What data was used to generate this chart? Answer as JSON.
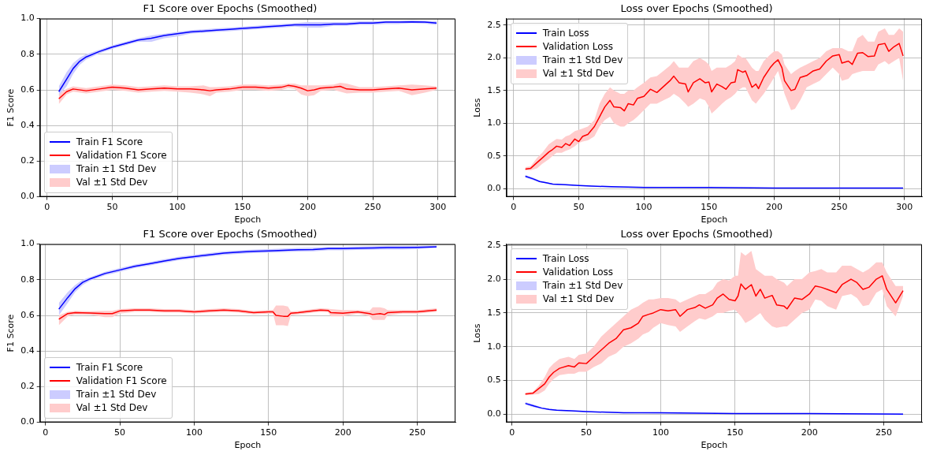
{
  "chart_data": [
    {
      "type": "line",
      "title": "F1 Score over Epochs (Smoothed)",
      "xlabel": "Epoch",
      "ylabel": "F1 Score",
      "xlim": [
        -5.5,
        313.5
      ],
      "ylim": [
        0,
        1
      ],
      "xticks": [
        0,
        50,
        100,
        150,
        200,
        250,
        300
      ],
      "yticks": [
        {
          "value": 0,
          "label": "0.0"
        },
        {
          "value": 0.2,
          "label": "0.2"
        },
        {
          "value": 0.4,
          "label": "0.4"
        },
        {
          "value": 0.6,
          "label": "0.6"
        },
        {
          "value": 0.8,
          "label": "0.8"
        },
        {
          "value": 1,
          "label": "1.0"
        }
      ],
      "grid": true,
      "legend": "bottom left",
      "marker": "none",
      "annotations": [
        "Train ±1 Std Dev",
        "Val ±1 Std Dev"
      ],
      "series": [
        {
          "name": "Train F1 Score",
          "color": "#0000ff",
          "x": [
            9,
            15,
            20,
            25,
            30,
            40,
            50,
            60,
            70,
            80,
            90,
            100,
            110,
            120,
            130,
            140,
            150,
            160,
            170,
            180,
            190,
            200,
            210,
            220,
            230,
            240,
            250,
            260,
            270,
            280,
            290,
            299
          ],
          "values": [
            0.59,
            0.66,
            0.72,
            0.76,
            0.785,
            0.815,
            0.84,
            0.86,
            0.88,
            0.89,
            0.905,
            0.915,
            0.925,
            0.93,
            0.935,
            0.94,
            0.945,
            0.95,
            0.955,
            0.96,
            0.965,
            0.965,
            0.965,
            0.97,
            0.97,
            0.975,
            0.975,
            0.98,
            0.98,
            0.982,
            0.98,
            0.975
          ],
          "lower": [
            0.57,
            0.62,
            0.69,
            0.74,
            0.77,
            0.805,
            0.83,
            0.85,
            0.87,
            0.87,
            0.89,
            0.9,
            0.915,
            0.92,
            0.925,
            0.93,
            0.935,
            0.94,
            0.945,
            0.95,
            0.955,
            0.95,
            0.95,
            0.96,
            0.96,
            0.965,
            0.965,
            0.97,
            0.97,
            0.975,
            0.972,
            0.965
          ],
          "upper": [
            0.62,
            0.7,
            0.75,
            0.78,
            0.8,
            0.825,
            0.85,
            0.87,
            0.89,
            0.905,
            0.915,
            0.925,
            0.935,
            0.94,
            0.945,
            0.95,
            0.955,
            0.96,
            0.965,
            0.97,
            0.975,
            0.98,
            0.98,
            0.98,
            0.98,
            0.985,
            0.985,
            0.988,
            0.988,
            0.99,
            0.988,
            0.985
          ]
        },
        {
          "name": "Validation F1 Score",
          "color": "#ff0000",
          "x": [
            9,
            15,
            20,
            30,
            40,
            50,
            60,
            70,
            80,
            90,
            100,
            110,
            120,
            125,
            130,
            140,
            150,
            160,
            170,
            180,
            185,
            190,
            195,
            200,
            205,
            210,
            220,
            225,
            230,
            240,
            250,
            260,
            270,
            280,
            290,
            299
          ],
          "values": [
            0.55,
            0.59,
            0.605,
            0.595,
            0.605,
            0.615,
            0.61,
            0.6,
            0.605,
            0.61,
            0.605,
            0.605,
            0.6,
            0.595,
            0.6,
            0.605,
            0.615,
            0.615,
            0.61,
            0.615,
            0.625,
            0.62,
            0.61,
            0.595,
            0.6,
            0.61,
            0.615,
            0.62,
            0.605,
            0.6,
            0.6,
            0.605,
            0.61,
            0.6,
            0.605,
            0.61
          ],
          "lower": [
            0.52,
            0.575,
            0.59,
            0.58,
            0.59,
            0.6,
            0.595,
            0.585,
            0.59,
            0.595,
            0.59,
            0.585,
            0.575,
            0.565,
            0.585,
            0.59,
            0.6,
            0.6,
            0.595,
            0.6,
            0.61,
            0.605,
            0.575,
            0.565,
            0.57,
            0.595,
            0.6,
            0.59,
            0.58,
            0.585,
            0.585,
            0.59,
            0.595,
            0.57,
            0.585,
            0.6
          ],
          "upper": [
            0.58,
            0.605,
            0.62,
            0.61,
            0.62,
            0.63,
            0.625,
            0.615,
            0.62,
            0.625,
            0.62,
            0.62,
            0.625,
            0.615,
            0.615,
            0.62,
            0.63,
            0.63,
            0.625,
            0.63,
            0.635,
            0.635,
            0.625,
            0.625,
            0.625,
            0.625,
            0.63,
            0.64,
            0.635,
            0.615,
            0.615,
            0.62,
            0.625,
            0.63,
            0.625,
            0.62
          ]
        }
      ]
    },
    {
      "type": "line",
      "title": "Loss over Epochs (Smoothed)",
      "xlabel": "Epoch",
      "ylabel": "Loss",
      "xlim": [
        -5.5,
        313.5
      ],
      "ylim": [
        -0.124,
        2.6
      ],
      "xticks": [
        0,
        50,
        100,
        150,
        200,
        250,
        300
      ],
      "yticks": [
        {
          "value": 0,
          "label": "0.0"
        },
        {
          "value": 0.5,
          "label": "0.5"
        },
        {
          "value": 1,
          "label": "1.0"
        },
        {
          "value": 1.5,
          "label": "1.5"
        },
        {
          "value": 2,
          "label": "2.0"
        },
        {
          "value": 2.5,
          "label": "2.5"
        }
      ],
      "grid": true,
      "legend": "top left",
      "marker": "none",
      "annotations": [
        "Train ±1 Std Dev",
        "Val ±1 Std Dev"
      ],
      "series": [
        {
          "name": "Train Loss",
          "color": "#0000ff",
          "x": [
            9,
            15,
            20,
            25,
            30,
            40,
            50,
            60,
            75,
            100,
            150,
            200,
            250,
            299
          ],
          "values": [
            0.19,
            0.15,
            0.11,
            0.09,
            0.07,
            0.06,
            0.05,
            0.04,
            0.03,
            0.02,
            0.02,
            0.01,
            0.01,
            0.01
          ],
          "lower": [
            0.17,
            0.13,
            0.1,
            0.08,
            0.06,
            0.05,
            0.04,
            0.03,
            0.02,
            0.02,
            0.01,
            0.01,
            0,
            0
          ],
          "upper": [
            0.21,
            0.17,
            0.12,
            0.1,
            0.08,
            0.06,
            0.05,
            0.04,
            0.03,
            0.03,
            0.02,
            0.01,
            0.01,
            0.01
          ]
        },
        {
          "name": "Validation Loss",
          "color": "#ff0000",
          "x": [
            9,
            13,
            18,
            22,
            27,
            30,
            33,
            37,
            40,
            43,
            47,
            50,
            53,
            57,
            62,
            66,
            70,
            74,
            77,
            82,
            85,
            88,
            92,
            95,
            100,
            105,
            110,
            115,
            120,
            123,
            127,
            132,
            134,
            138,
            143,
            147,
            150,
            152,
            156,
            160,
            163,
            167,
            170,
            172,
            176,
            178,
            183,
            186,
            188,
            192,
            197,
            200,
            203,
            206,
            208,
            213,
            216,
            220,
            225,
            230,
            235,
            240,
            245,
            250,
            252,
            257,
            260,
            264,
            268,
            272,
            277,
            280,
            285,
            288,
            292,
            296,
            299
          ],
          "values": [
            0.3,
            0.31,
            0.4,
            0.47,
            0.56,
            0.6,
            0.65,
            0.63,
            0.69,
            0.66,
            0.76,
            0.72,
            0.8,
            0.83,
            0.95,
            1.1,
            1.25,
            1.35,
            1.25,
            1.24,
            1.19,
            1.3,
            1.28,
            1.38,
            1.41,
            1.52,
            1.47,
            1.56,
            1.65,
            1.72,
            1.62,
            1.6,
            1.48,
            1.62,
            1.68,
            1.62,
            1.63,
            1.48,
            1.6,
            1.56,
            1.52,
            1.62,
            1.63,
            1.82,
            1.78,
            1.8,
            1.55,
            1.6,
            1.53,
            1.7,
            1.85,
            1.92,
            1.97,
            1.85,
            1.65,
            1.5,
            1.52,
            1.7,
            1.73,
            1.8,
            1.83,
            1.95,
            2.03,
            2.05,
            1.92,
            1.95,
            1.9,
            2.07,
            2.08,
            2.02,
            2.03,
            2.2,
            2.22,
            2.1,
            2.17,
            2.22,
            2.03
          ],
          "lower": [
            0.28,
            0.28,
            0.31,
            0.38,
            0.45,
            0.5,
            0.55,
            0.55,
            0.58,
            0.6,
            0.65,
            0.7,
            0.72,
            0.74,
            0.8,
            0.95,
            1.05,
            1.1,
            1,
            0.95,
            0.95,
            1,
            1.05,
            1.1,
            1.2,
            1.3,
            1.3,
            1.35,
            1.4,
            1.45,
            1.4,
            1.3,
            1.25,
            1.3,
            1.38,
            1.35,
            1.25,
            1.15,
            1.22,
            1.3,
            1.35,
            1.4,
            1.45,
            1.5,
            1.55,
            1.55,
            1.35,
            1.3,
            1.35,
            1.45,
            1.6,
            1.7,
            1.8,
            1.6,
            1.45,
            1.2,
            1.22,
            1.35,
            1.55,
            1.6,
            1.65,
            1.75,
            1.85,
            1.75,
            1.65,
            1.68,
            1.75,
            1.78,
            1.8,
            1.8,
            1.8,
            1.9,
            1.95,
            1.9,
            1.95,
            2,
            1.65
          ],
          "upper": [
            0.33,
            0.34,
            0.47,
            0.55,
            0.68,
            0.72,
            0.76,
            0.75,
            0.8,
            0.82,
            0.88,
            0.9,
            0.92,
            0.95,
            1.05,
            1.3,
            1.45,
            1.55,
            1.5,
            1.45,
            1.45,
            1.5,
            1.5,
            1.55,
            1.62,
            1.7,
            1.72,
            1.8,
            1.88,
            1.95,
            1.85,
            1.85,
            1.85,
            1.95,
            2,
            1.95,
            1.9,
            1.8,
            1.85,
            1.85,
            1.85,
            1.9,
            1.95,
            2.05,
            2,
            2,
            1.85,
            1.8,
            1.8,
            1.95,
            2.05,
            2.1,
            2.1,
            2.05,
            1.9,
            1.75,
            1.8,
            1.85,
            1.9,
            1.95,
            2,
            2.1,
            2.15,
            2.15,
            2.15,
            2.1,
            2.1,
            2.3,
            2.35,
            2.25,
            2.25,
            2.4,
            2.45,
            2.35,
            2.35,
            2.45,
            2.4
          ]
        }
      ]
    },
    {
      "type": "line",
      "title": "F1 Score over Epochs (Smoothed)",
      "xlabel": "Epoch",
      "ylabel": "F1 Score",
      "xlim": [
        -3.7,
        275.7
      ],
      "ylim": [
        0,
        1
      ],
      "xticks": [
        0,
        50,
        100,
        150,
        200,
        250
      ],
      "yticks": [
        {
          "value": 0,
          "label": "0.0"
        },
        {
          "value": 0.2,
          "label": "0.2"
        },
        {
          "value": 0.4,
          "label": "0.4"
        },
        {
          "value": 0.6,
          "label": "0.6"
        },
        {
          "value": 0.8,
          "label": "0.8"
        },
        {
          "value": 1,
          "label": "1.0"
        }
      ],
      "grid": true,
      "legend": "bottom left",
      "marker": "none",
      "annotations": [
        "Train ±1 Std Dev",
        "Val ±1 Std Dev"
      ],
      "series": [
        {
          "name": "Train F1 Score",
          "color": "#0000ff",
          "x": [
            9,
            15,
            20,
            25,
            30,
            40,
            50,
            60,
            70,
            80,
            90,
            100,
            110,
            120,
            130,
            140,
            150,
            160,
            170,
            180,
            190,
            200,
            210,
            220,
            230,
            240,
            250,
            263
          ],
          "values": [
            0.635,
            0.7,
            0.75,
            0.785,
            0.805,
            0.835,
            0.855,
            0.875,
            0.89,
            0.905,
            0.92,
            0.93,
            0.94,
            0.95,
            0.955,
            0.96,
            0.962,
            0.965,
            0.968,
            0.97,
            0.975,
            0.975,
            0.977,
            0.978,
            0.98,
            0.98,
            0.982,
            0.985
          ],
          "lower": [
            0.6,
            0.67,
            0.73,
            0.77,
            0.795,
            0.825,
            0.845,
            0.865,
            0.88,
            0.895,
            0.91,
            0.92,
            0.93,
            0.94,
            0.945,
            0.95,
            0.952,
            0.955,
            0.958,
            0.96,
            0.965,
            0.965,
            0.967,
            0.968,
            0.97,
            0.97,
            0.972,
            0.978
          ],
          "upper": [
            0.67,
            0.73,
            0.77,
            0.8,
            0.815,
            0.845,
            0.865,
            0.885,
            0.9,
            0.915,
            0.93,
            0.94,
            0.95,
            0.96,
            0.965,
            0.97,
            0.972,
            0.975,
            0.978,
            0.98,
            0.985,
            0.985,
            0.987,
            0.988,
            0.99,
            0.99,
            0.99,
            0.992
          ]
        },
        {
          "name": "Validation F1 Score",
          "color": "#ff0000",
          "x": [
            9,
            15,
            20,
            30,
            40,
            45,
            50,
            60,
            70,
            80,
            90,
            100,
            110,
            120,
            130,
            140,
            150,
            153,
            155,
            160,
            163,
            165,
            170,
            180,
            185,
            190,
            192,
            200,
            210,
            218,
            220,
            225,
            228,
            230,
            240,
            250,
            263
          ],
          "values": [
            0.578,
            0.61,
            0.615,
            0.613,
            0.61,
            0.61,
            0.625,
            0.63,
            0.63,
            0.625,
            0.625,
            0.62,
            0.625,
            0.63,
            0.625,
            0.615,
            0.62,
            0.62,
            0.6,
            0.595,
            0.595,
            0.612,
            0.615,
            0.625,
            0.63,
            0.628,
            0.615,
            0.612,
            0.62,
            0.61,
            0.605,
            0.61,
            0.605,
            0.615,
            0.62,
            0.62,
            0.63
          ],
          "lower": [
            0.545,
            0.595,
            0.605,
            0.603,
            0.59,
            0.59,
            0.61,
            0.62,
            0.62,
            0.615,
            0.615,
            0.61,
            0.615,
            0.62,
            0.615,
            0.605,
            0.61,
            0.61,
            0.545,
            0.545,
            0.54,
            0.6,
            0.605,
            0.615,
            0.62,
            0.618,
            0.595,
            0.595,
            0.61,
            0.595,
            0.575,
            0.575,
            0.575,
            0.6,
            0.61,
            0.61,
            0.62
          ],
          "upper": [
            0.6,
            0.62,
            0.625,
            0.623,
            0.625,
            0.625,
            0.635,
            0.64,
            0.64,
            0.635,
            0.635,
            0.63,
            0.635,
            0.64,
            0.635,
            0.625,
            0.63,
            0.63,
            0.655,
            0.655,
            0.65,
            0.622,
            0.625,
            0.635,
            0.64,
            0.638,
            0.635,
            0.63,
            0.63,
            0.625,
            0.645,
            0.645,
            0.64,
            0.63,
            0.63,
            0.63,
            0.64
          ]
        }
      ]
    },
    {
      "type": "line",
      "title": "Loss over Epochs (Smoothed)",
      "xlabel": "Epoch",
      "ylabel": "Loss",
      "xlim": [
        -3.7,
        275.7
      ],
      "ylim": [
        -0.12,
        2.52
      ],
      "xticks": [
        0,
        50,
        100,
        150,
        200,
        250
      ],
      "yticks": [
        {
          "value": 0,
          "label": "0.0"
        },
        {
          "value": 0.5,
          "label": "0.5"
        },
        {
          "value": 1,
          "label": "1.0"
        },
        {
          "value": 1.5,
          "label": "1.5"
        },
        {
          "value": 2,
          "label": "2.0"
        },
        {
          "value": 2.5,
          "label": "2.5"
        }
      ],
      "grid": true,
      "legend": "top left",
      "marker": "none",
      "annotations": [
        "Train ±1 Std Dev",
        "Val ±1 Std Dev"
      ],
      "series": [
        {
          "name": "Train Loss",
          "color": "#0000ff",
          "x": [
            9,
            15,
            20,
            25,
            30,
            40,
            50,
            75,
            100,
            150,
            200,
            263
          ],
          "values": [
            0.16,
            0.12,
            0.09,
            0.07,
            0.06,
            0.05,
            0.04,
            0.02,
            0.02,
            0.01,
            0.01,
            0
          ],
          "lower": [
            0.14,
            0.1,
            0.08,
            0.06,
            0.05,
            0.04,
            0.03,
            0.02,
            0.01,
            0.01,
            0,
            0
          ],
          "upper": [
            0.18,
            0.14,
            0.1,
            0.08,
            0.07,
            0.05,
            0.04,
            0.03,
            0.02,
            0.01,
            0.01,
            0.01
          ]
        },
        {
          "name": "Validation Loss",
          "color": "#ff0000",
          "x": [
            9,
            14,
            18,
            22,
            25,
            28,
            32,
            38,
            42,
            45,
            50,
            55,
            60,
            65,
            70,
            75,
            80,
            85,
            88,
            92,
            95,
            100,
            105,
            110,
            113,
            118,
            123,
            126,
            130,
            135,
            138,
            142,
            146,
            150,
            152,
            154,
            157,
            161,
            164,
            167,
            170,
            175,
            178,
            183,
            185,
            190,
            195,
            200,
            204,
            208,
            212,
            218,
            222,
            228,
            232,
            236,
            240,
            245,
            249,
            252,
            258,
            263
          ],
          "values": [
            0.3,
            0.31,
            0.38,
            0.45,
            0.55,
            0.62,
            0.68,
            0.72,
            0.7,
            0.76,
            0.75,
            0.85,
            0.95,
            1.05,
            1.12,
            1.25,
            1.28,
            1.35,
            1.45,
            1.48,
            1.5,
            1.55,
            1.53,
            1.55,
            1.45,
            1.55,
            1.58,
            1.62,
            1.57,
            1.62,
            1.72,
            1.78,
            1.7,
            1.68,
            1.75,
            1.93,
            1.85,
            1.92,
            1.75,
            1.85,
            1.72,
            1.76,
            1.62,
            1.6,
            1.56,
            1.72,
            1.7,
            1.78,
            1.9,
            1.88,
            1.85,
            1.8,
            1.92,
            2,
            1.95,
            1.85,
            1.88,
            2,
            2.05,
            1.85,
            1.65,
            1.83
          ],
          "lower": [
            0.28,
            0.29,
            0.3,
            0.35,
            0.45,
            0.52,
            0.58,
            0.6,
            0.6,
            0.63,
            0.63,
            0.7,
            0.75,
            0.85,
            0.9,
            1,
            1.05,
            1.12,
            1.18,
            1.22,
            1.28,
            1.35,
            1.32,
            1.3,
            1.22,
            1.3,
            1.38,
            1.42,
            1.4,
            1.45,
            1.5,
            1.5,
            1.53,
            1.55,
            1.5,
            1.45,
            1.35,
            1.4,
            1.45,
            1.5,
            1.4,
            1.3,
            1.28,
            1.3,
            1.3,
            1.4,
            1.5,
            1.55,
            1.7,
            1.68,
            1.6,
            1.55,
            1.75,
            1.78,
            1.72,
            1.6,
            1.62,
            1.8,
            1.85,
            1.6,
            1.45,
            1.75
          ],
          "upper": [
            0.32,
            0.33,
            0.42,
            0.55,
            0.68,
            0.75,
            0.82,
            0.85,
            0.82,
            0.88,
            0.9,
            1,
            1.15,
            1.25,
            1.35,
            1.45,
            1.55,
            1.6,
            1.65,
            1.7,
            1.7,
            1.72,
            1.72,
            1.7,
            1.65,
            1.7,
            1.75,
            1.78,
            1.78,
            1.85,
            1.95,
            2,
            1.98,
            2.05,
            2.05,
            2.4,
            2.35,
            2.42,
            2.15,
            2.1,
            2.05,
            2.05,
            2,
            1.95,
            1.9,
            2,
            2,
            2.1,
            2.12,
            2.15,
            2.1,
            2.1,
            2.2,
            2.2,
            2.15,
            2.1,
            2.15,
            2.25,
            2.25,
            2.1,
            1.9,
            1.9
          ]
        }
      ]
    }
  ]
}
